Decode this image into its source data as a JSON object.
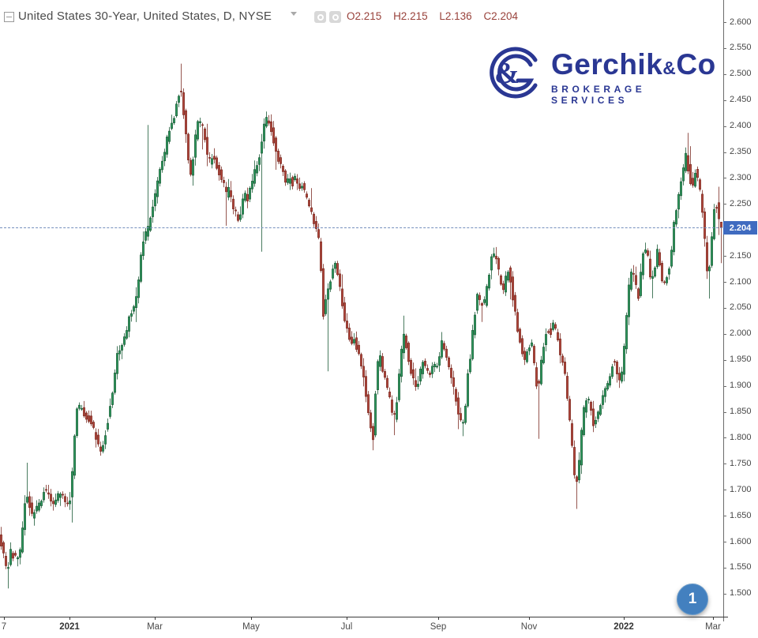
{
  "header": {
    "title": "United States 30-Year, United States, D, NYSE",
    "ohlc": {
      "open": "O2.215",
      "high": "H2.215",
      "low": "L2.136",
      "close": "C2.204"
    }
  },
  "logo": {
    "brand_main": "Gerchik",
    "brand_amp": "&",
    "brand_co": "Co",
    "tagline": "BROKERAGE SERVICES",
    "color": "#2a3793"
  },
  "price_badge": {
    "value": "2.204"
  },
  "page_marker": {
    "label": "1"
  },
  "chart_data": {
    "type": "candlestick",
    "title": "United States 30-Year, United States, D, NYSE",
    "ylim": [
      1.456,
      2.643
    ],
    "y_ticks": {
      "from": 2.6,
      "to": 1.5,
      "step": 0.05,
      "format_decimals": 3
    },
    "x_ticks": [
      {
        "text": "7",
        "x": 5,
        "bold": false
      },
      {
        "text": "2021",
        "x": 88,
        "bold": true
      },
      {
        "text": "Mar",
        "x": 196,
        "bold": false
      },
      {
        "text": "May",
        "x": 318,
        "bold": false
      },
      {
        "text": "Jul",
        "x": 439,
        "bold": false
      },
      {
        "text": "Sep",
        "x": 555,
        "bold": false
      },
      {
        "text": "Nov",
        "x": 670,
        "bold": false
      },
      {
        "text": "2022",
        "x": 790,
        "bold": true
      },
      {
        "text": "Mar",
        "x": 903,
        "bold": false
      }
    ],
    "last_close": 2.204,
    "last_candle": {
      "open": 2.215,
      "high": 2.215,
      "low": 2.136,
      "close": 2.204
    },
    "candle_spacing_px": 3,
    "seed": 7,
    "colors": {
      "up_fill": "#2f9a5f",
      "up_stroke": "#1d5c38",
      "down_fill": "#b1463c",
      "down_stroke": "#7b2d24",
      "close_line": "#7590bd",
      "badge_bg": "#3f6bc0"
    },
    "price_path": [
      [
        0,
        1.62
      ],
      [
        4,
        1.59
      ],
      [
        8,
        1.56
      ],
      [
        11,
        1.54
      ],
      [
        14,
        1.58
      ],
      [
        18,
        1.575
      ],
      [
        22,
        1.57
      ],
      [
        26,
        1.565
      ],
      [
        30,
        1.62
      ],
      [
        34,
        1.69
      ],
      [
        38,
        1.68
      ],
      [
        42,
        1.65
      ],
      [
        46,
        1.66
      ],
      [
        50,
        1.67
      ],
      [
        54,
        1.685
      ],
      [
        58,
        1.7
      ],
      [
        62,
        1.7
      ],
      [
        66,
        1.68
      ],
      [
        70,
        1.67
      ],
      [
        74,
        1.685
      ],
      [
        78,
        1.695
      ],
      [
        82,
        1.68
      ],
      [
        86,
        1.67
      ],
      [
        90,
        1.68
      ],
      [
        94,
        1.75
      ],
      [
        98,
        1.85
      ],
      [
        102,
        1.86
      ],
      [
        106,
        1.85
      ],
      [
        110,
        1.84
      ],
      [
        115,
        1.835
      ],
      [
        120,
        1.815
      ],
      [
        125,
        1.79
      ],
      [
        130,
        1.77
      ],
      [
        135,
        1.81
      ],
      [
        140,
        1.85
      ],
      [
        145,
        1.9
      ],
      [
        150,
        1.96
      ],
      [
        155,
        1.97
      ],
      [
        160,
        2.0
      ],
      [
        165,
        2.03
      ],
      [
        170,
        2.05
      ],
      [
        175,
        2.08
      ],
      [
        180,
        2.15
      ],
      [
        185,
        2.19
      ],
      [
        190,
        2.21
      ],
      [
        195,
        2.24
      ],
      [
        200,
        2.28
      ],
      [
        205,
        2.32
      ],
      [
        210,
        2.35
      ],
      [
        215,
        2.39
      ],
      [
        219,
        2.41
      ],
      [
        223,
        2.42
      ],
      [
        227,
        2.46
      ],
      [
        230,
        2.47
      ],
      [
        233,
        2.44
      ],
      [
        236,
        2.4
      ],
      [
        240,
        2.33
      ],
      [
        244,
        2.3
      ],
      [
        248,
        2.37
      ],
      [
        252,
        2.41
      ],
      [
        256,
        2.4
      ],
      [
        260,
        2.39
      ],
      [
        264,
        2.34
      ],
      [
        268,
        2.33
      ],
      [
        272,
        2.34
      ],
      [
        276,
        2.32
      ],
      [
        280,
        2.31
      ],
      [
        284,
        2.29
      ],
      [
        288,
        2.27
      ],
      [
        292,
        2.28
      ],
      [
        296,
        2.25
      ],
      [
        300,
        2.23
      ],
      [
        304,
        2.22
      ],
      [
        308,
        2.25
      ],
      [
        312,
        2.27
      ],
      [
        316,
        2.26
      ],
      [
        320,
        2.29
      ],
      [
        324,
        2.31
      ],
      [
        328,
        2.33
      ],
      [
        332,
        2.36
      ],
      [
        336,
        2.4
      ],
      [
        340,
        2.42
      ],
      [
        344,
        2.4
      ],
      [
        348,
        2.37
      ],
      [
        352,
        2.34
      ],
      [
        356,
        2.33
      ],
      [
        360,
        2.31
      ],
      [
        364,
        2.29
      ],
      [
        368,
        2.3
      ],
      [
        372,
        2.29
      ],
      [
        376,
        2.3
      ],
      [
        380,
        2.28
      ],
      [
        384,
        2.29
      ],
      [
        388,
        2.27
      ],
      [
        392,
        2.25
      ],
      [
        396,
        2.23
      ],
      [
        400,
        2.21
      ],
      [
        404,
        2.2
      ],
      [
        408,
        2.12
      ],
      [
        410,
        2.03
      ],
      [
        414,
        2.06
      ],
      [
        418,
        2.09
      ],
      [
        422,
        2.12
      ],
      [
        426,
        2.14
      ],
      [
        430,
        2.1
      ],
      [
        434,
        2.07
      ],
      [
        438,
        2.03
      ],
      [
        442,
        2.0
      ],
      [
        446,
        1.98
      ],
      [
        450,
        1.99
      ],
      [
        454,
        1.97
      ],
      [
        458,
        1.95
      ],
      [
        462,
        1.92
      ],
      [
        466,
        1.87
      ],
      [
        470,
        1.83
      ],
      [
        474,
        1.8
      ],
      [
        478,
        1.92
      ],
      [
        482,
        1.96
      ],
      [
        486,
        1.93
      ],
      [
        490,
        1.91
      ],
      [
        494,
        1.88
      ],
      [
        498,
        1.85
      ],
      [
        502,
        1.84
      ],
      [
        506,
        1.9
      ],
      [
        510,
        1.97
      ],
      [
        514,
        2.0
      ],
      [
        518,
        1.96
      ],
      [
        522,
        1.93
      ],
      [
        526,
        1.91
      ],
      [
        530,
        1.9
      ],
      [
        534,
        1.93
      ],
      [
        538,
        1.95
      ],
      [
        542,
        1.93
      ],
      [
        546,
        1.92
      ],
      [
        550,
        1.94
      ],
      [
        554,
        1.93
      ],
      [
        558,
        1.96
      ],
      [
        562,
        1.99
      ],
      [
        566,
        1.96
      ],
      [
        570,
        1.94
      ],
      [
        574,
        1.91
      ],
      [
        578,
        1.88
      ],
      [
        582,
        1.85
      ],
      [
        586,
        1.82
      ],
      [
        590,
        1.85
      ],
      [
        594,
        1.92
      ],
      [
        598,
        1.97
      ],
      [
        602,
        2.03
      ],
      [
        606,
        2.08
      ],
      [
        610,
        2.06
      ],
      [
        614,
        2.05
      ],
      [
        618,
        2.09
      ],
      [
        622,
        2.13
      ],
      [
        626,
        2.16
      ],
      [
        630,
        2.14
      ],
      [
        634,
        2.11
      ],
      [
        638,
        2.07
      ],
      [
        642,
        2.11
      ],
      [
        646,
        2.13
      ],
      [
        650,
        2.08
      ],
      [
        654,
        2.04
      ],
      [
        658,
        2.0
      ],
      [
        662,
        1.97
      ],
      [
        666,
        1.95
      ],
      [
        670,
        1.97
      ],
      [
        674,
        1.99
      ],
      [
        678,
        1.94
      ],
      [
        682,
        1.89
      ],
      [
        686,
        1.93
      ],
      [
        690,
        1.98
      ],
      [
        694,
        2.01
      ],
      [
        698,
        2.0
      ],
      [
        702,
        2.02
      ],
      [
        706,
        2.0
      ],
      [
        710,
        1.97
      ],
      [
        714,
        1.94
      ],
      [
        718,
        1.91
      ],
      [
        722,
        1.85
      ],
      [
        726,
        1.78
      ],
      [
        730,
        1.71
      ],
      [
        734,
        1.73
      ],
      [
        738,
        1.81
      ],
      [
        742,
        1.87
      ],
      [
        746,
        1.88
      ],
      [
        750,
        1.85
      ],
      [
        754,
        1.82
      ],
      [
        758,
        1.84
      ],
      [
        762,
        1.86
      ],
      [
        766,
        1.88
      ],
      [
        770,
        1.9
      ],
      [
        774,
        1.92
      ],
      [
        778,
        1.95
      ],
      [
        782,
        1.93
      ],
      [
        786,
        1.91
      ],
      [
        790,
        1.93
      ],
      [
        794,
        2.02
      ],
      [
        798,
        2.09
      ],
      [
        802,
        2.12
      ],
      [
        806,
        2.1
      ],
      [
        810,
        2.07
      ],
      [
        814,
        2.13
      ],
      [
        818,
        2.17
      ],
      [
        822,
        2.15
      ],
      [
        826,
        2.09
      ],
      [
        830,
        2.12
      ],
      [
        834,
        2.16
      ],
      [
        838,
        2.12
      ],
      [
        842,
        2.09
      ],
      [
        846,
        2.11
      ],
      [
        850,
        2.13
      ],
      [
        854,
        2.2
      ],
      [
        858,
        2.24
      ],
      [
        862,
        2.28
      ],
      [
        866,
        2.31
      ],
      [
        870,
        2.35
      ],
      [
        874,
        2.31
      ],
      [
        878,
        2.28
      ],
      [
        882,
        2.31
      ],
      [
        886,
        2.3
      ],
      [
        890,
        2.25
      ],
      [
        894,
        2.18
      ],
      [
        898,
        2.11
      ],
      [
        902,
        2.16
      ],
      [
        906,
        2.24
      ],
      [
        910,
        2.25
      ],
      [
        913,
        2.21
      ]
    ],
    "wick_spikes": [
      [
        11,
        1.51
      ],
      [
        35,
        1.752
      ],
      [
        188,
        2.402
      ],
      [
        229,
        2.52
      ],
      [
        287,
        2.208
      ],
      [
        330,
        2.158
      ],
      [
        338,
        2.428
      ],
      [
        416,
        1.928
      ],
      [
        472,
        1.776
      ],
      [
        500,
        1.805
      ],
      [
        512,
        2.035
      ],
      [
        585,
        1.803
      ],
      [
        683,
        1.798
      ],
      [
        731,
        1.663
      ],
      [
        871,
        2.387
      ],
      [
        899,
        2.068
      ]
    ]
  }
}
